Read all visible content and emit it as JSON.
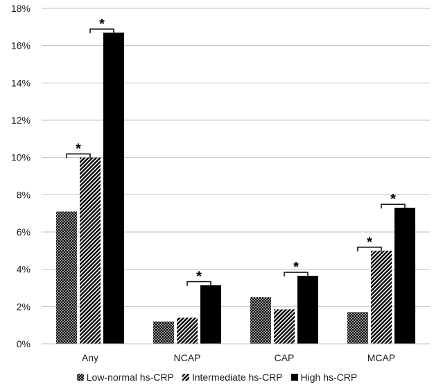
{
  "chart_data": {
    "type": "bar",
    "categories": [
      "Any",
      "NCAP",
      "CAP",
      "MCAP"
    ],
    "series": [
      {
        "name": "Low-normal hs-CRP",
        "values": [
          7.1,
          1.2,
          2.5,
          1.7
        ],
        "pattern": "dots",
        "color": "#000000"
      },
      {
        "name": "Intermediate hs-CRP",
        "values": [
          10.0,
          1.4,
          1.85,
          5.0
        ],
        "pattern": "diagonal",
        "color": "#000000"
      },
      {
        "name": "High hs-CRP",
        "values": [
          16.7,
          3.15,
          3.65,
          7.3
        ],
        "pattern": "solid",
        "color": "#000000"
      }
    ],
    "ylim": [
      0,
      18
    ],
    "yticks": [
      0,
      2,
      4,
      6,
      8,
      10,
      12,
      14,
      16,
      18
    ],
    "ytick_suffix": "%",
    "grid": true,
    "legend_position": "bottom",
    "significance": [
      {
        "category": 0,
        "from_series": 1,
        "to_series": 2,
        "label": "*"
      },
      {
        "category": 0,
        "from_series": 0,
        "to_series": 1,
        "label": "*"
      },
      {
        "category": 1,
        "from_series": 1,
        "to_series": 2,
        "label": "*"
      },
      {
        "category": 2,
        "from_series": 1,
        "to_series": 2,
        "label": "*"
      },
      {
        "category": 3,
        "from_series": 0,
        "to_series": 1,
        "label": "*"
      },
      {
        "category": 3,
        "from_series": 1,
        "to_series": 2,
        "label": "*"
      }
    ]
  }
}
